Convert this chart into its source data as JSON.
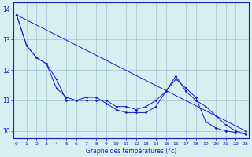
{
  "xlabel": "Graphe des températures (°c)",
  "x": [
    0,
    1,
    2,
    3,
    4,
    5,
    6,
    7,
    8,
    9,
    10,
    11,
    12,
    13,
    14,
    15,
    16,
    17,
    18,
    19,
    20,
    21,
    22,
    23
  ],
  "line1": [
    13.8,
    12.8,
    12.4,
    12.2,
    11.4,
    11.1,
    11.0,
    11.1,
    11.1,
    10.9,
    10.7,
    10.6,
    10.6,
    10.6,
    10.8,
    11.3,
    11.7,
    11.4,
    11.1,
    10.3,
    10.1,
    10.0,
    9.95,
    9.9
  ],
  "line2": [
    13.8,
    12.8,
    12.4,
    12.2,
    11.7,
    11.0,
    11.0,
    11.0,
    11.0,
    11.0,
    10.8,
    10.8,
    10.7,
    10.8,
    11.0,
    11.3,
    11.8,
    11.3,
    11.0,
    10.8,
    10.5,
    10.2,
    10.0,
    9.9
  ],
  "line3_x": [
    0,
    23
  ],
  "line3_y": [
    13.8,
    10.0
  ],
  "bg_color": "#d7eff0",
  "line_color": "#1a1acc",
  "grid_color": "#9ec8cc",
  "ylim": [
    9.75,
    14.2
  ],
  "yticks": [
    10,
    11,
    12,
    13,
    14
  ],
  "xlim": [
    -0.3,
    23.3
  ]
}
